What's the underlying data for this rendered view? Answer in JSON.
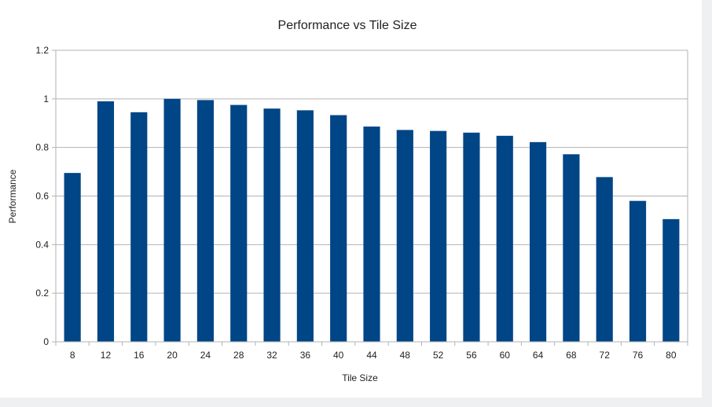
{
  "chart_data": {
    "type": "bar",
    "title": "Performance vs Tile Size",
    "xlabel": "Tile Size",
    "ylabel": "Performance",
    "categories": [
      "8",
      "12",
      "16",
      "20",
      "24",
      "28",
      "32",
      "36",
      "40",
      "44",
      "48",
      "52",
      "56",
      "60",
      "64",
      "68",
      "72",
      "76",
      "80"
    ],
    "values": [
      0.695,
      0.99,
      0.945,
      1.0,
      0.995,
      0.975,
      0.96,
      0.953,
      0.933,
      0.886,
      0.872,
      0.868,
      0.861,
      0.848,
      0.822,
      0.772,
      0.678,
      0.58,
      0.505
    ],
    "ylim": [
      0,
      1.2
    ],
    "yticks": [
      0,
      0.2,
      0.4,
      0.6,
      0.8,
      1,
      1.2
    ],
    "ytick_labels": [
      "0",
      "0.2",
      "0.4",
      "0.6",
      "0.8",
      "1",
      "1.2"
    ],
    "grid": true,
    "legend": "none",
    "bar_color": "#004586",
    "grid_color": "#b3b3b3"
  }
}
